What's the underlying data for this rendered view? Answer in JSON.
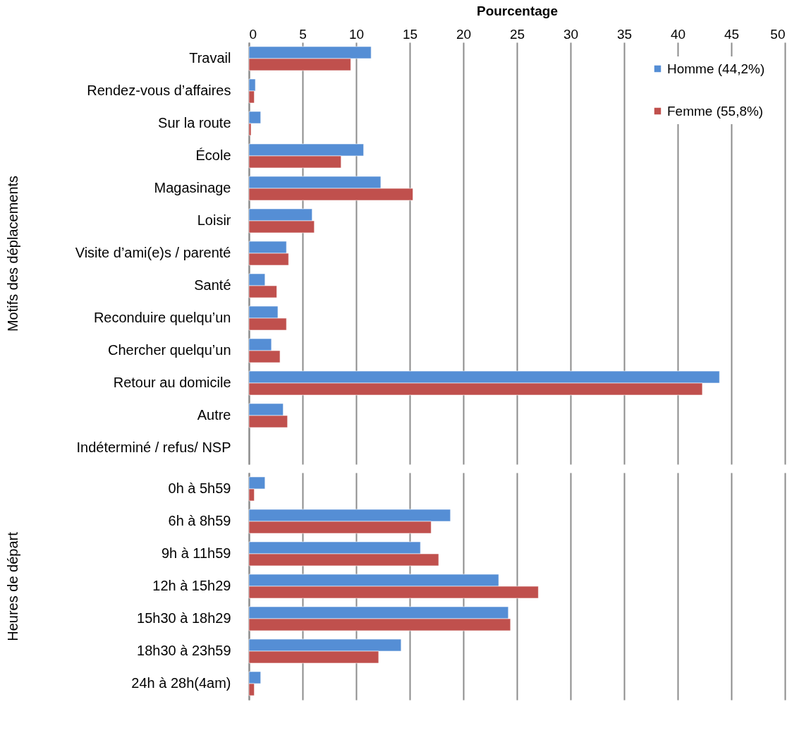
{
  "chart_data": [
    {
      "type": "bar",
      "orientation": "horizontal",
      "xlabel": "Pourcentage",
      "ylabel": "Motifs des déplacements",
      "categories": [
        "Travail",
        "Rendez-vous d’affaires",
        "Sur la route",
        "École",
        "Magasinage",
        "Loisir",
        "Visite d’ami(e)s / parenté",
        "Santé",
        "Reconduire quelqu’un",
        "Chercher quelqu’un",
        "Retour au domicile",
        "Autre",
        "Indéterminé / refus/ NSP"
      ],
      "series": [
        {
          "name": "Homme (44,2%)",
          "color": "#558ed5",
          "values": [
            11.4,
            0.6,
            1.1,
            10.7,
            12.3,
            5.9,
            3.5,
            1.5,
            2.7,
            2.1,
            43.9,
            3.2,
            null
          ]
        },
        {
          "name": "Femme (55,8%)",
          "color": "#c0504d",
          "values": [
            9.5,
            0.5,
            0.2,
            8.6,
            15.3,
            6.1,
            3.7,
            2.6,
            3.5,
            2.9,
            42.3,
            3.6,
            null
          ]
        }
      ],
      "xlim": [
        0,
        50
      ],
      "xticks": [
        0,
        5,
        10,
        15,
        20,
        25,
        30,
        35,
        40,
        45,
        50
      ],
      "grid": "x",
      "legend": "top right"
    },
    {
      "type": "bar",
      "orientation": "horizontal",
      "ylabel": "Heures de départ",
      "categories": [
        "0h à 5h59",
        "6h à 8h59",
        "9h à 11h59",
        "12h à 15h29",
        "15h30 à 18h29",
        "18h30 à 23h59",
        "24h à 28h(4am)"
      ],
      "series": [
        {
          "color": "#558ed5",
          "values": [
            1.5,
            18.8,
            16.0,
            23.3,
            24.2,
            14.2,
            1.1
          ]
        },
        {
          "color": "#c0504d",
          "values": [
            0.5,
            17.0,
            17.7,
            27.0,
            24.4,
            12.1,
            0.5
          ]
        }
      ],
      "xlim": [
        0,
        50
      ],
      "xticks": [
        0,
        5,
        10,
        15,
        20,
        25,
        30,
        35,
        40,
        45,
        50
      ],
      "grid": "x",
      "tick_labels": "y"
    }
  ]
}
